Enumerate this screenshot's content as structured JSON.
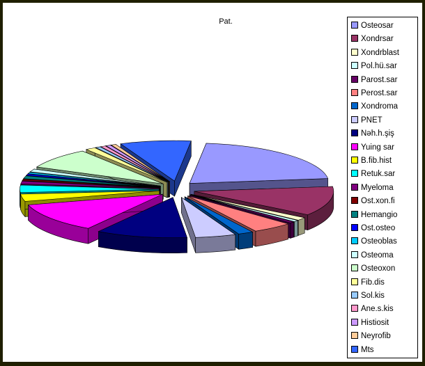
{
  "chart_data": {
    "type": "pie",
    "title": "Pat.",
    "legend_position": "right",
    "exploded": true,
    "three_d": true,
    "categories": [
      "Osteosar",
      "Xondrsar",
      "Xondrblast",
      "Pol.hü.sar",
      "Parost.sar",
      "Perost.sar",
      "Xondroma",
      "PNET",
      "Nəh.h.şiş",
      "Yuing sar",
      "B.fib.hist",
      "Retuk.sar",
      "Myeloma",
      "Ost.xon.fi",
      "Hemangio",
      "Ost.osteo",
      "Osteoblas",
      "Osteoma",
      "Osteoxon",
      "Fib.dis",
      "Sol.kis",
      "Ane.s.kis",
      "Histiosit",
      "Neyrofib",
      "Mts"
    ],
    "values": [
      18,
      10,
      1,
      0.5,
      0.5,
      4,
      1.5,
      4,
      9,
      10,
      2.5,
      2.5,
      1,
      0.5,
      1,
      0.5,
      0.5,
      1,
      7,
      1,
      0.5,
      0.5,
      0.5,
      0.5,
      7
    ],
    "colors": [
      "#9999FF",
      "#993366",
      "#FFFFCC",
      "#CCFFFF",
      "#660066",
      "#FF8080",
      "#0066CC",
      "#CCCCFF",
      "#000080",
      "#FF00FF",
      "#FFFF00",
      "#00FFFF",
      "#800080",
      "#800000",
      "#008080",
      "#0000FF",
      "#00CCFF",
      "#CCFFFF",
      "#CCFFCC",
      "#FFFF99",
      "#99CCFF",
      "#FF99CC",
      "#CC99FF",
      "#FFCC99",
      "#3366FF"
    ]
  }
}
